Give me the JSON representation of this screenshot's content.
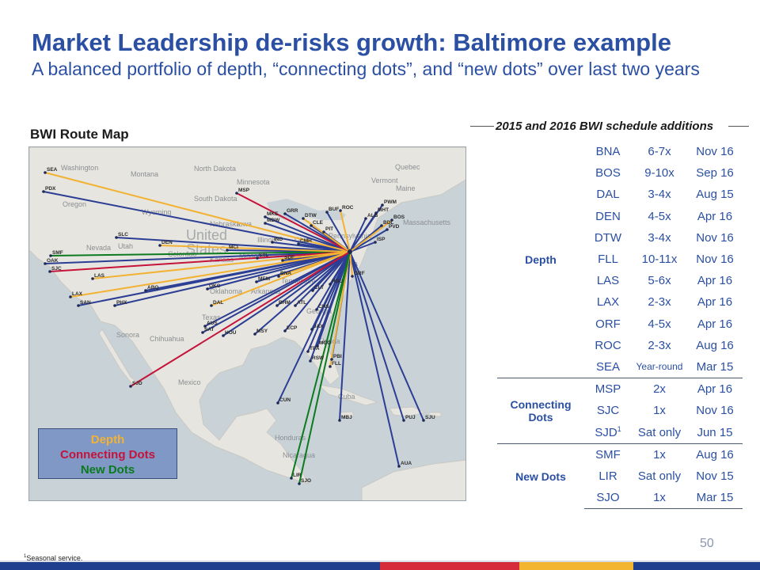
{
  "title": "Market Leadership de-risks growth: Baltimore example",
  "subtitle": "A balanced portfolio of depth, “connecting dots”, and “new dots” over last two years",
  "map_label": "BWI Route Map",
  "legend": {
    "depth": "Depth",
    "connecting": "Connecting Dots",
    "new": "New Dots"
  },
  "colors": {
    "title": "#2a4fa3",
    "depth": "#f2b233",
    "connecting": "#c5133a",
    "new": "#0c7a1e",
    "route_blue": "#2b3e94"
  },
  "schedule_title": "2015 and 2016 BWI schedule additions",
  "schedule": {
    "depth_label": "Depth",
    "connecting_label": "Connecting Dots",
    "new_label": "New Dots",
    "depth": [
      {
        "code": "BNA",
        "freq": "6-7x",
        "date": "Nov 16"
      },
      {
        "code": "BOS",
        "freq": "9-10x",
        "date": "Sep 16"
      },
      {
        "code": "DAL",
        "freq": "3-4x",
        "date": "Aug 15"
      },
      {
        "code": "DEN",
        "freq": "4-5x",
        "date": "Apr 16"
      },
      {
        "code": "DTW",
        "freq": "3-4x",
        "date": "Nov 16"
      },
      {
        "code": "FLL",
        "freq": "10-11x",
        "date": "Nov 16"
      },
      {
        "code": "LAS",
        "freq": "5-6x",
        "date": "Apr 16"
      },
      {
        "code": "LAX",
        "freq": "2-3x",
        "date": "Apr 16"
      },
      {
        "code": "ORF",
        "freq": "4-5x",
        "date": "Apr 16"
      },
      {
        "code": "ROC",
        "freq": "2-3x",
        "date": "Aug 16"
      },
      {
        "code": "SEA",
        "freq": "Year-round",
        "date": "Mar 15"
      }
    ],
    "connecting": [
      {
        "code": "MSP",
        "freq": "2x",
        "date": "Apr 16"
      },
      {
        "code": "SJC",
        "freq": "1x",
        "date": "Nov 16"
      },
      {
        "code": "SJD",
        "sup": "1",
        "freq": "Sat only",
        "date": "Jun 15"
      }
    ],
    "new": [
      {
        "code": "SMF",
        "freq": "1x",
        "date": "Aug 16"
      },
      {
        "code": "LIR",
        "freq": "Sat only",
        "date": "Nov 15"
      },
      {
        "code": "SJO",
        "freq": "1x",
        "date": "Mar 15"
      }
    ]
  },
  "map": {
    "country_label": "United States",
    "places": [
      "Washington",
      "Oregon",
      "Montana",
      "North Dakota",
      "South Dakota",
      "Minnesota",
      "Wyoming",
      "Nebraska",
      "Nevada",
      "Utah",
      "Colorado",
      "Kansas",
      "Oklahoma",
      "Texas",
      "Arkansas",
      "Sonora",
      "Chihuahua",
      "Mexico",
      "Cuba",
      "Honduras",
      "Nicaragua",
      "Maine",
      "Vermont",
      "Massachusetts",
      "Pennsylvania",
      "Ohio",
      "Virginia",
      "Georgia",
      "Florida",
      "Tennessee",
      "Missouri",
      "Illinois",
      "Quebec",
      "Iowa"
    ],
    "airports": [
      "SEA",
      "PDX",
      "SLC",
      "SMF",
      "OAK",
      "SJC",
      "LAS",
      "LAX",
      "SAN",
      "PHX",
      "DEN",
      "MCI",
      "STL",
      "ABQ",
      "OKC",
      "DAL",
      "AUS",
      "SAT",
      "HOU",
      "MSY",
      "MEM",
      "BNA",
      "BHM",
      "ATL",
      "ECP",
      "CLT",
      "CHS",
      "RDU",
      "ORF",
      "JAX",
      "MCO",
      "TPA",
      "RSW",
      "PBI",
      "FLL",
      "CUN",
      "SJD",
      "MBJ",
      "PUJ",
      "SJU",
      "AUA",
      "LIR",
      "SJO",
      "MSP",
      "MKE",
      "MDW",
      "GRR",
      "DTW",
      "CLE",
      "PIT",
      "CMH",
      "IND",
      "SDF",
      "BUF",
      "ROC",
      "ALB",
      "MHT",
      "PWM",
      "BOS",
      "BDL",
      "PVD",
      "ISP"
    ]
  },
  "page_number": "50",
  "footnote_sup": "1",
  "footnote": "Seasonal service."
}
